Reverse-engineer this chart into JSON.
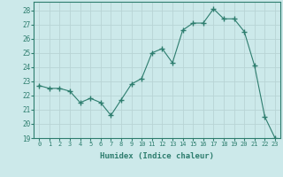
{
  "x": [
    0,
    1,
    2,
    3,
    4,
    5,
    6,
    7,
    8,
    9,
    10,
    11,
    12,
    13,
    14,
    15,
    16,
    17,
    18,
    19,
    20,
    21,
    22,
    23
  ],
  "y": [
    22.7,
    22.5,
    22.5,
    22.3,
    21.5,
    21.8,
    21.5,
    20.6,
    21.7,
    22.8,
    23.2,
    25.0,
    25.3,
    24.3,
    26.6,
    27.1,
    27.1,
    28.1,
    27.4,
    27.4,
    26.5,
    24.1,
    20.5,
    19.0
  ],
  "line_color": "#2d7d6e",
  "marker": "+",
  "marker_size": 4,
  "bg_color": "#cce9ea",
  "grid_color": "#b8d4d5",
  "xlabel": "Humidex (Indice chaleur)",
  "ylim": [
    19,
    28.6
  ],
  "yticks": [
    19,
    20,
    21,
    22,
    23,
    24,
    25,
    26,
    27,
    28
  ],
  "xlim": [
    -0.5,
    23.5
  ],
  "xticks": [
    0,
    1,
    2,
    3,
    4,
    5,
    6,
    7,
    8,
    9,
    10,
    11,
    12,
    13,
    14,
    15,
    16,
    17,
    18,
    19,
    20,
    21,
    22,
    23
  ],
  "tick_color": "#2d7d6e",
  "label_color": "#2d7d6e",
  "axis_color": "#2d7d6e",
  "xlabel_fontsize": 6.5,
  "ytick_fontsize": 5.5,
  "xtick_fontsize": 5.0
}
